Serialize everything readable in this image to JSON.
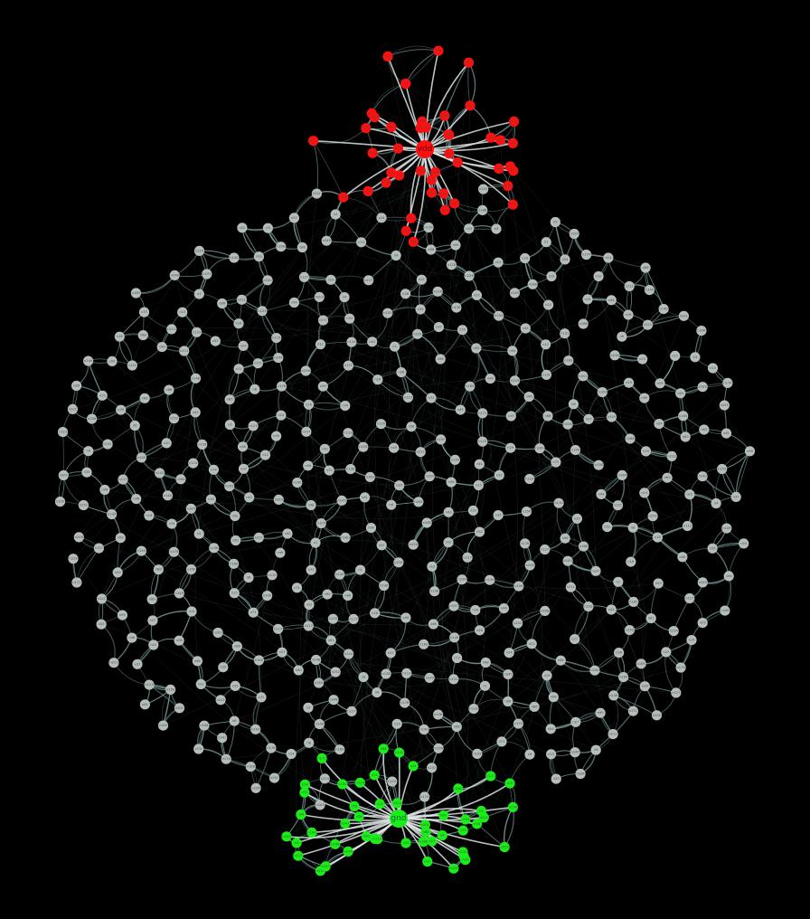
{
  "colors": {
    "background": "#000000",
    "node_default": "#b4bdb8",
    "node_vdd_cluster": "#ff1010",
    "node_gnd_cluster": "#19ee19",
    "edge": "#7fa3a3",
    "hub_edge": "#dde4e4",
    "label": "#4a4a4a"
  },
  "hubs": [
    {
      "id": "vdd",
      "label": "vdd",
      "color_key": "node_vdd_cluster"
    },
    {
      "id": "gnd",
      "label": "gnd",
      "color_key": "node_gnd_cluster"
    }
  ],
  "node_labels": [
    "n226",
    "n22",
    "n15",
    "n8",
    "n44",
    "n59",
    "n164",
    "n46",
    "n206",
    "n127",
    "n138",
    "n211",
    "n86",
    "n105",
    "n37",
    "n188",
    "n19",
    "n252",
    "n1",
    "n33",
    "n245",
    "n12",
    "n99",
    "n140",
    "n171",
    "n54",
    "n131",
    "n68",
    "n233",
    "n90",
    "n3",
    "n117",
    "n29",
    "n58",
    "n203",
    "n160",
    "n72",
    "n16",
    "n201",
    "n241",
    "n61",
    "n74",
    "n156",
    "n110",
    "n27",
    "n197",
    "n83",
    "n149",
    "n4",
    "n123",
    "n240",
    "n66",
    "n10",
    "n183",
    "n52",
    "n35",
    "n178",
    "n221",
    "n96",
    "n14",
    "n139",
    "n248",
    "n42",
    "n185",
    "n71",
    "n9",
    "n113",
    "n28",
    "n174",
    "n224"
  ]
}
